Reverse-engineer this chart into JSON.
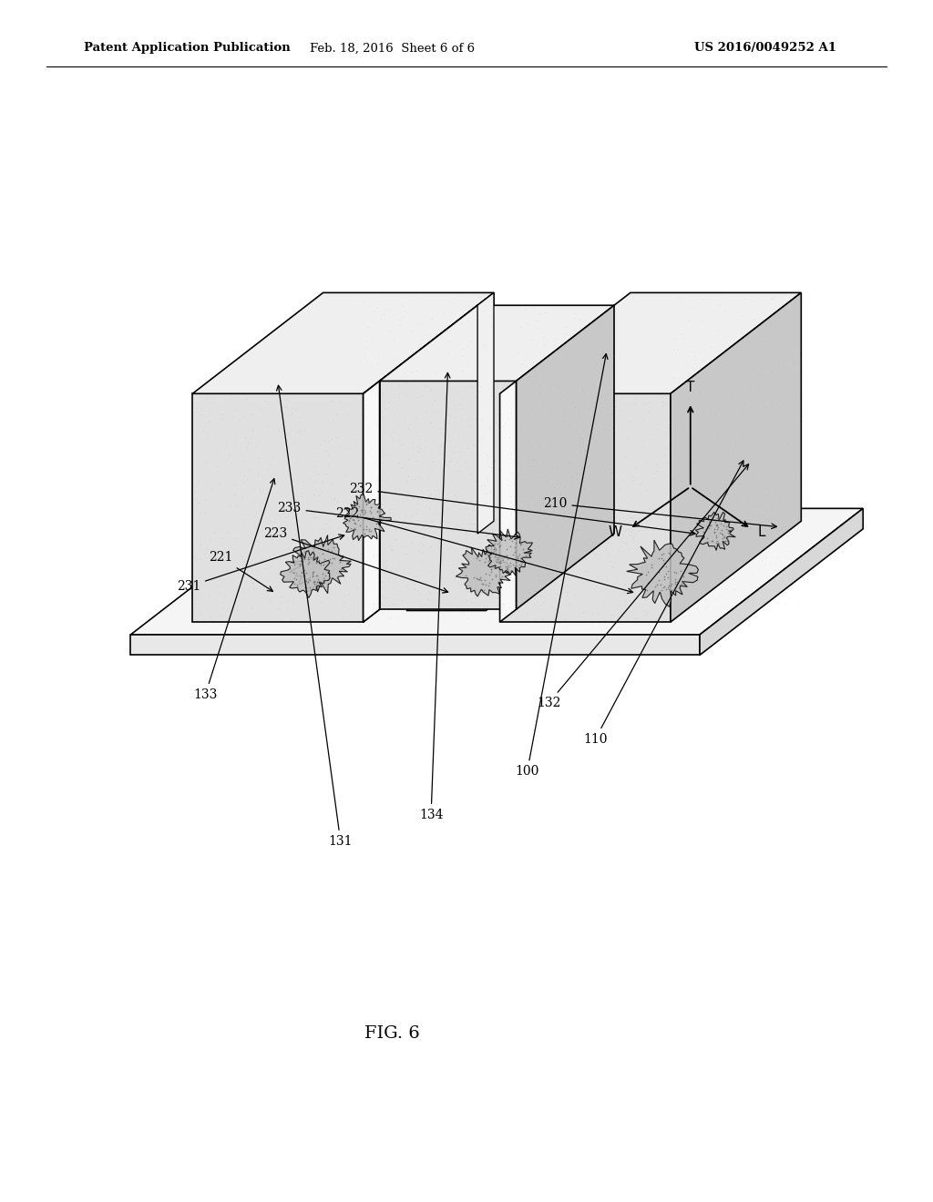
{
  "header_left": "Patent Application Publication",
  "header_mid": "Feb. 18, 2016  Sheet 6 of 6",
  "header_right": "US 2016/0049252 A1",
  "figure_label": "FIG. 6",
  "background_color": "#ffffff",
  "line_color": "#000000",
  "stipple_color": "#aaaaaa"
}
